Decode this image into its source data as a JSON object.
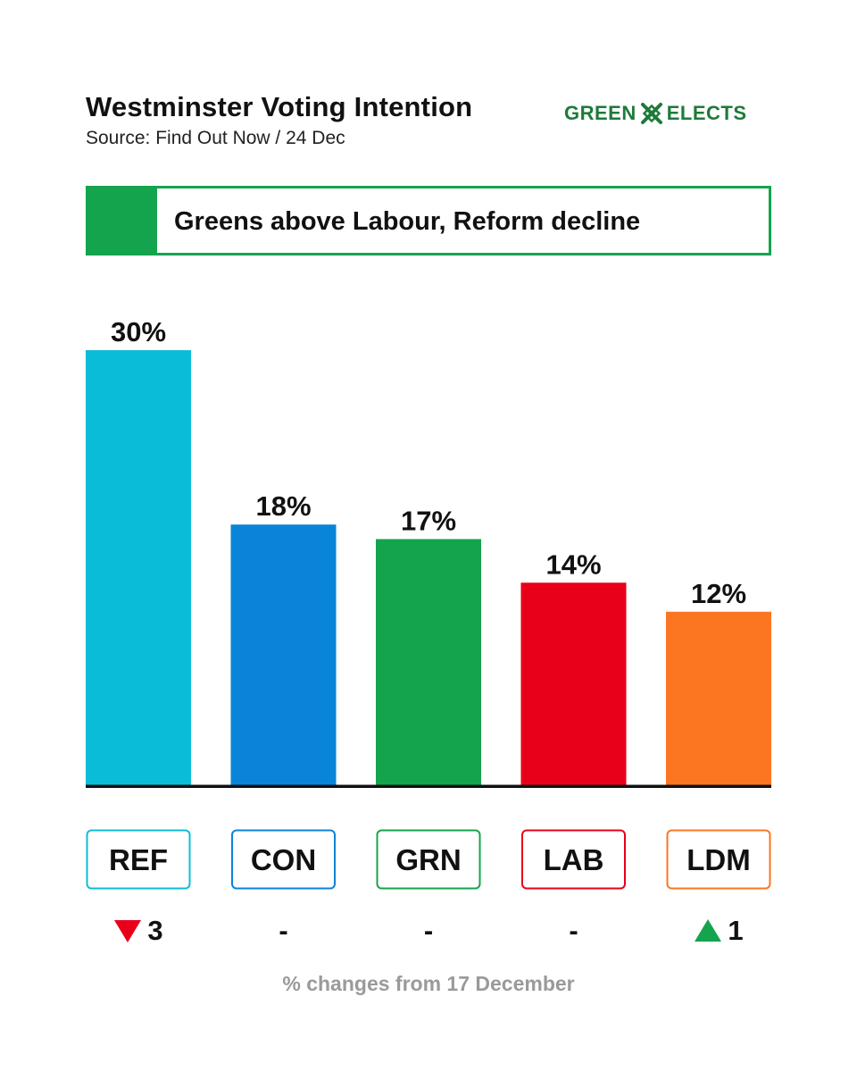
{
  "header": {
    "title": "Westminster Voting Intention",
    "subtitle": "Source: Find Out Now / 24 Dec"
  },
  "logo": {
    "left": "GREEN",
    "right": "ELECTS",
    "icon": "x-mark-icon",
    "color": "#1e7a3a"
  },
  "banner": {
    "text": "Greens above Labour, Reform decline",
    "color": "#14a44d"
  },
  "chart_data": {
    "type": "bar",
    "title": "Westminster Voting Intention",
    "categories": [
      "REF",
      "CON",
      "GRN",
      "LAB",
      "LDM"
    ],
    "values": [
      30,
      18,
      17,
      14,
      12
    ],
    "value_labels": [
      "30%",
      "18%",
      "17%",
      "14%",
      "12%"
    ],
    "colors": [
      "#0bbcd8",
      "#0a84d8",
      "#14a44d",
      "#e8001b",
      "#fc7622"
    ],
    "ylim": [
      0,
      30
    ],
    "xlabel": "",
    "ylabel": "",
    "grid": false
  },
  "changes": {
    "items": [
      {
        "party": "REF",
        "direction": "down",
        "text": "3"
      },
      {
        "party": "CON",
        "direction": "none",
        "text": "-"
      },
      {
        "party": "GRN",
        "direction": "none",
        "text": "-"
      },
      {
        "party": "LAB",
        "direction": "none",
        "text": "-"
      },
      {
        "party": "LDM",
        "direction": "up",
        "text": "1"
      }
    ],
    "down_color": "#e8001b",
    "up_color": "#14a44d"
  },
  "footnote": "% changes from 17 December"
}
